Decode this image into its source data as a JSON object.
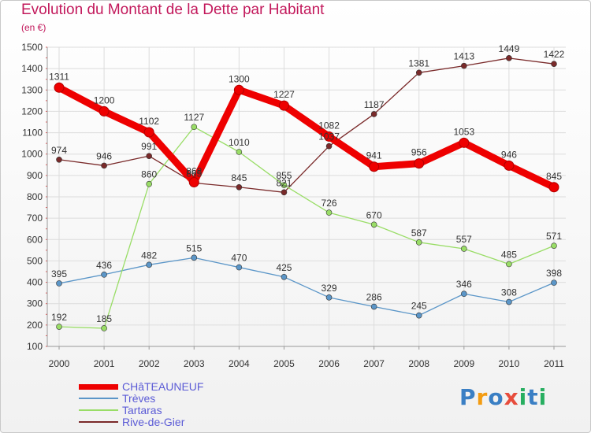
{
  "chart_data": {
    "type": "line",
    "title": "Evolution du Montant de la Dette par Habitant",
    "subtitle": "(en €)",
    "xlabel": "",
    "ylabel": "",
    "ylim": [
      100,
      1500
    ],
    "yticks": [
      "1500",
      "1400",
      "1300",
      "1200",
      "1100",
      "1000",
      "900",
      "800",
      "700",
      "600",
      "500",
      "400",
      "300",
      "200",
      "100"
    ],
    "x": [
      "2000",
      "2001",
      "2002",
      "2003",
      "2004",
      "2005",
      "2006",
      "2007",
      "2008",
      "2009",
      "2010",
      "2011"
    ],
    "grid": true,
    "legend_position": "bottom-left",
    "series": [
      {
        "name": "CHâTEAUNEUF",
        "color": "#ee0000",
        "values": [
          1311,
          1200,
          1102,
          868,
          1300,
          1227,
          1082,
          941,
          956,
          1053,
          946,
          845
        ]
      },
      {
        "name": "Trèves",
        "color": "#5b96c8",
        "values": [
          395,
          436,
          482,
          515,
          470,
          425,
          329,
          286,
          245,
          346,
          308,
          398
        ]
      },
      {
        "name": "Tartaras",
        "color": "#99dd66",
        "values": [
          192,
          185,
          860,
          1127,
          1010,
          855,
          726,
          670,
          587,
          557,
          485,
          571
        ]
      },
      {
        "name": "Rive-de-Gier",
        "color": "#7a2a2a",
        "values": [
          974,
          946,
          991,
          865,
          845,
          821,
          1037,
          1187,
          1381,
          1413,
          1449,
          1422
        ]
      }
    ]
  },
  "branding": {
    "name": "Proxiti",
    "letters": [
      {
        "char": "P",
        "color": "#3a7fc4"
      },
      {
        "char": "r",
        "color": "#f39c12"
      },
      {
        "char": "o",
        "color": "#3a7fc4"
      },
      {
        "char": "x",
        "color": "#e74c3c"
      },
      {
        "char": "i",
        "color": "#27ae60"
      },
      {
        "char": "t",
        "color": "#3a7fc4"
      },
      {
        "char": "i",
        "color": "#27ae60"
      }
    ]
  }
}
